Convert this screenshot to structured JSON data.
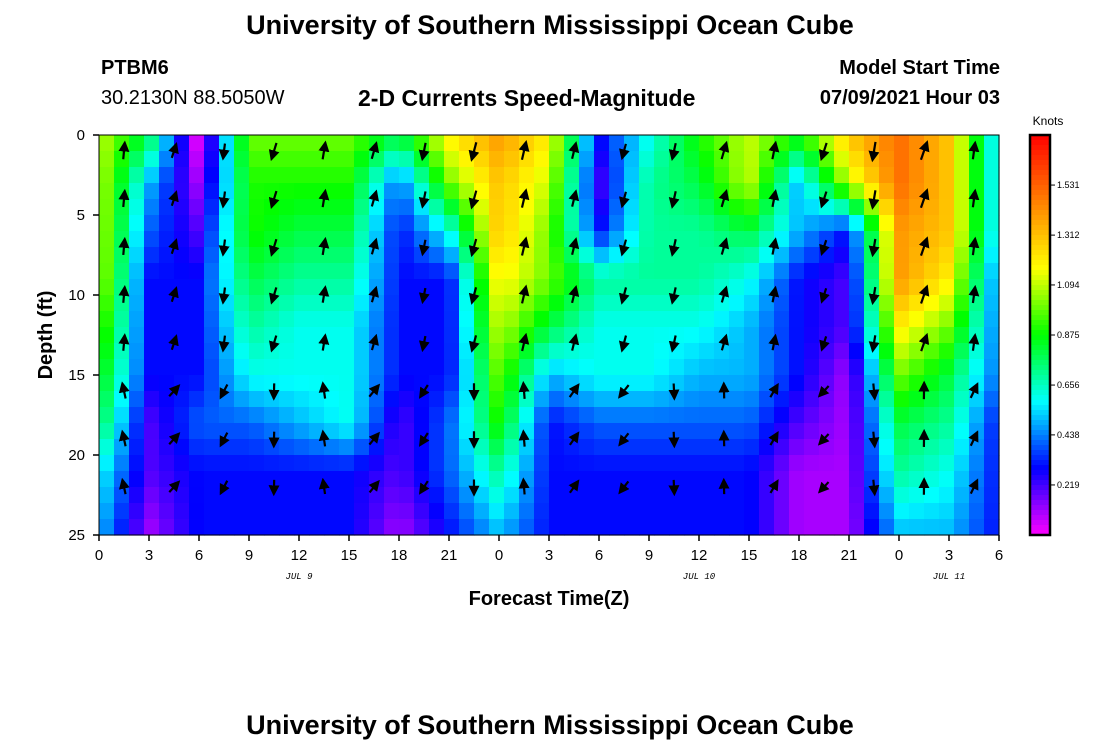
{
  "header": {
    "title": "University of Southern Mississippi Ocean Cube",
    "station": "PTBM6",
    "coords": "30.2130N  88.5050W",
    "chart_title": "2-D Currents Speed-Magnitude",
    "model_label": "Model Start Time",
    "model_time": "07/09/2021 Hour 03"
  },
  "footer": {
    "title": "University of Southern Mississippi Ocean Cube"
  },
  "chart_data": {
    "type": "heatmap",
    "title": "2-D Currents Speed-Magnitude",
    "xlabel": "Forecast Time(Z)",
    "ylabel": "Depth (ft)",
    "x_ticks": [
      "0",
      "3",
      "6",
      "9",
      "12",
      "15",
      "18",
      "21",
      "0",
      "3",
      "6",
      "9",
      "12",
      "15",
      "18",
      "21",
      "0",
      "3",
      "6"
    ],
    "date_labels": [
      {
        "label": "JUL 9",
        "at_hour": 12
      },
      {
        "label": "JUL 10",
        "at_hour": 36
      },
      {
        "label": "JUL 11",
        "at_hour": 51
      }
    ],
    "xlim": [
      0,
      54
    ],
    "y_ticks": [
      0,
      5,
      10,
      15,
      20,
      25
    ],
    "ylim": [
      0,
      25
    ],
    "y_inverted": true,
    "colorbar": {
      "unit": "Knots",
      "ticks": [
        1.531,
        1.312,
        1.094,
        0.875,
        0.656,
        0.438,
        0.219
      ],
      "range": [
        0,
        1.75
      ],
      "colors": [
        "#ff00ff",
        "#8000ff",
        "#0000ff",
        "#0080ff",
        "#00ffff",
        "#00ff80",
        "#00ff00",
        "#80ff00",
        "#ffff00",
        "#ffc000",
        "#ff8000",
        "#ff4000",
        "#ff0000"
      ]
    },
    "hours": [
      0,
      3,
      6,
      9,
      12,
      15,
      18,
      21,
      24,
      27,
      30,
      33,
      36,
      39,
      42,
      45,
      48,
      51,
      54
    ],
    "depths": [
      0,
      3,
      6,
      9,
      12,
      15,
      18,
      21,
      25
    ],
    "speed": [
      [
        1.1,
        0.8,
        0.0,
        1.0,
        1.0,
        1.0,
        0.8,
        1.2,
        1.4,
        1.2,
        0.3,
        0.6,
        0.9,
        1.1,
        0.9,
        1.3,
        1.5,
        1.3,
        0.5
      ],
      [
        1.1,
        0.5,
        0.1,
        0.9,
        0.9,
        0.9,
        0.4,
        1.0,
        1.3,
        1.1,
        0.2,
        0.7,
        0.8,
        1.1,
        0.5,
        1.1,
        1.5,
        1.3,
        0.5
      ],
      [
        1.1,
        0.4,
        0.2,
        0.9,
        0.8,
        0.8,
        0.3,
        0.6,
        1.3,
        1.0,
        0.3,
        0.7,
        0.7,
        0.8,
        0.5,
        0.3,
        1.4,
        1.3,
        0.5
      ],
      [
        1.1,
        0.3,
        0.3,
        0.8,
        0.7,
        0.7,
        0.3,
        0.3,
        1.2,
        1.0,
        0.7,
        0.7,
        0.7,
        0.6,
        0.3,
        0.2,
        1.4,
        1.2,
        0.4
      ],
      [
        1.0,
        0.3,
        0.3,
        0.7,
        0.6,
        0.6,
        0.3,
        0.3,
        1.1,
        0.8,
        0.6,
        0.6,
        0.6,
        0.5,
        0.3,
        0.2,
        1.2,
        1.0,
        0.4
      ],
      [
        0.9,
        0.3,
        0.3,
        0.6,
        0.6,
        0.6,
        0.3,
        0.3,
        1.0,
        0.5,
        0.6,
        0.6,
        0.5,
        0.5,
        0.3,
        0.1,
        1.0,
        0.8,
        0.4
      ],
      [
        0.8,
        0.2,
        0.4,
        0.4,
        0.5,
        0.6,
        0.2,
        0.4,
        0.9,
        0.3,
        0.4,
        0.4,
        0.4,
        0.4,
        0.2,
        0.1,
        0.8,
        0.7,
        0.3
      ],
      [
        0.6,
        0.2,
        0.3,
        0.3,
        0.3,
        0.3,
        0.2,
        0.4,
        0.7,
        0.3,
        0.3,
        0.3,
        0.3,
        0.3,
        0.1,
        0.1,
        0.7,
        0.6,
        0.3
      ],
      [
        0.5,
        0.1,
        0.3,
        0.3,
        0.3,
        0.3,
        0.1,
        0.3,
        0.5,
        0.3,
        0.3,
        0.3,
        0.3,
        0.3,
        0.1,
        0.1,
        0.5,
        0.5,
        0.3
      ]
    ]
  }
}
